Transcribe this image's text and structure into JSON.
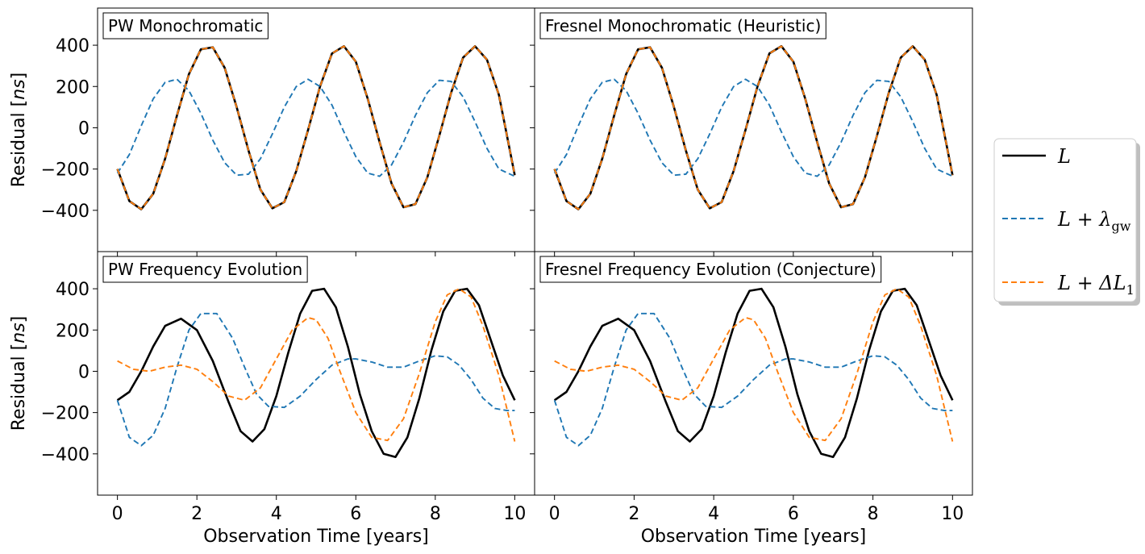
{
  "chart_data": {
    "type": "line",
    "layout": "2x2 grid, shared axes",
    "xlabel": "Observation Time [years]",
    "ylabel": "Residual [ns]",
    "ylabel_unit": "ns",
    "xlim": [
      -0.5,
      10.5
    ],
    "ylim": [
      -600,
      580
    ],
    "xticks": [
      0,
      2,
      4,
      6,
      8,
      10
    ],
    "yticks": [
      -400,
      -200,
      0,
      200,
      400
    ],
    "grid": false,
    "legend": {
      "placement": "outside-right",
      "entries": [
        {
          "key": "L",
          "text": "L",
          "color": "#000000",
          "style": "solid"
        },
        {
          "key": "Lgw",
          "text": "L + λ",
          "sub": "gw",
          "color": "#1f77b4",
          "style": "dashed"
        },
        {
          "key": "LdL",
          "text": "L + ΔL",
          "sub": "1",
          "color": "#ff7f0e",
          "style": "dashed"
        }
      ]
    },
    "panels": [
      {
        "title": "PW Monochromatic",
        "series": [
          {
            "key": "L",
            "x": [
              0,
              0.3,
              0.6,
              0.9,
              1.2,
              1.5,
              1.8,
              2.1,
              2.4,
              2.7,
              3.0,
              3.3,
              3.6,
              3.9,
              4.2,
              4.5,
              4.8,
              5.1,
              5.4,
              5.7,
              6.0,
              6.3,
              6.6,
              6.9,
              7.2,
              7.5,
              7.8,
              8.1,
              8.4,
              8.7,
              9.0,
              9.3,
              9.6,
              10.0
            ],
            "y": [
              -200,
              -355,
              -395,
              -320,
              -150,
              60,
              260,
              380,
              390,
              290,
              100,
              -110,
              -300,
              -390,
              -360,
              -210,
              -10,
              200,
              360,
              395,
              320,
              140,
              -70,
              -270,
              -385,
              -370,
              -240,
              -40,
              170,
              340,
              395,
              330,
              160,
              -230
            ]
          },
          {
            "key": "LdL",
            "x": [
              0,
              0.3,
              0.6,
              0.9,
              1.2,
              1.5,
              1.8,
              2.1,
              2.4,
              2.7,
              3.0,
              3.3,
              3.6,
              3.9,
              4.2,
              4.5,
              4.8,
              5.1,
              5.4,
              5.7,
              6.0,
              6.3,
              6.6,
              6.9,
              7.2,
              7.5,
              7.8,
              8.1,
              8.4,
              8.7,
              9.0,
              9.3,
              9.6,
              10.0
            ],
            "y": [
              -200,
              -355,
              -395,
              -320,
              -150,
              60,
              260,
              380,
              390,
              290,
              100,
              -110,
              -300,
              -390,
              -360,
              -210,
              -10,
              200,
              360,
              395,
              320,
              140,
              -70,
              -270,
              -385,
              -370,
              -240,
              -40,
              170,
              340,
              395,
              330,
              160,
              -230
            ]
          },
          {
            "key": "Lgw",
            "x": [
              0,
              0.3,
              0.6,
              0.9,
              1.2,
              1.5,
              1.8,
              2.1,
              2.4,
              2.7,
              3.0,
              3.3,
              3.6,
              3.9,
              4.2,
              4.5,
              4.8,
              5.1,
              5.4,
              5.7,
              6.0,
              6.3,
              6.6,
              6.9,
              7.2,
              7.5,
              7.8,
              8.1,
              8.4,
              8.7,
              9.0,
              9.3,
              9.6,
              10.0
            ],
            "y": [
              -220,
              -130,
              10,
              140,
              220,
              235,
              180,
              70,
              -60,
              -170,
              -230,
              -225,
              -150,
              -30,
              100,
              200,
              235,
              200,
              110,
              -20,
              -140,
              -220,
              -235,
              -180,
              -70,
              60,
              170,
              230,
              225,
              150,
              30,
              -100,
              -200,
              -235
            ]
          }
        ]
      },
      {
        "title": "Fresnel Monochromatic (Heuristic)",
        "series": [
          {
            "key": "L",
            "x": [
              0,
              0.3,
              0.6,
              0.9,
              1.2,
              1.5,
              1.8,
              2.1,
              2.4,
              2.7,
              3.0,
              3.3,
              3.6,
              3.9,
              4.2,
              4.5,
              4.8,
              5.1,
              5.4,
              5.7,
              6.0,
              6.3,
              6.6,
              6.9,
              7.2,
              7.5,
              7.8,
              8.1,
              8.4,
              8.7,
              9.0,
              9.3,
              9.6,
              10.0
            ],
            "y": [
              -200,
              -355,
              -395,
              -320,
              -150,
              60,
              260,
              380,
              390,
              290,
              100,
              -110,
              -300,
              -390,
              -360,
              -210,
              -10,
              200,
              360,
              395,
              320,
              140,
              -70,
              -270,
              -385,
              -370,
              -240,
              -40,
              170,
              340,
              395,
              330,
              160,
              -230
            ]
          },
          {
            "key": "LdL",
            "x": [
              0,
              0.3,
              0.6,
              0.9,
              1.2,
              1.5,
              1.8,
              2.1,
              2.4,
              2.7,
              3.0,
              3.3,
              3.6,
              3.9,
              4.2,
              4.5,
              4.8,
              5.1,
              5.4,
              5.7,
              6.0,
              6.3,
              6.6,
              6.9,
              7.2,
              7.5,
              7.8,
              8.1,
              8.4,
              8.7,
              9.0,
              9.3,
              9.6,
              10.0
            ],
            "y": [
              -200,
              -355,
              -395,
              -320,
              -150,
              60,
              260,
              380,
              390,
              290,
              100,
              -110,
              -300,
              -390,
              -360,
              -210,
              -10,
              200,
              360,
              395,
              320,
              140,
              -70,
              -270,
              -385,
              -370,
              -240,
              -40,
              170,
              340,
              395,
              330,
              160,
              -230
            ]
          },
          {
            "key": "Lgw",
            "x": [
              0,
              0.3,
              0.6,
              0.9,
              1.2,
              1.5,
              1.8,
              2.1,
              2.4,
              2.7,
              3.0,
              3.3,
              3.6,
              3.9,
              4.2,
              4.5,
              4.8,
              5.1,
              5.4,
              5.7,
              6.0,
              6.3,
              6.6,
              6.9,
              7.2,
              7.5,
              7.8,
              8.1,
              8.4,
              8.7,
              9.0,
              9.3,
              9.6,
              10.0
            ],
            "y": [
              -220,
              -130,
              10,
              140,
              220,
              235,
              180,
              70,
              -60,
              -170,
              -230,
              -225,
              -150,
              -30,
              100,
              200,
              235,
              200,
              110,
              -20,
              -140,
              -220,
              -235,
              -180,
              -70,
              60,
              170,
              230,
              225,
              150,
              30,
              -100,
              -200,
              -235
            ]
          }
        ]
      },
      {
        "title": "PW Frequency Evolution",
        "series": [
          {
            "key": "L",
            "x": [
              0,
              0.3,
              0.6,
              0.9,
              1.2,
              1.6,
              2.0,
              2.4,
              2.8,
              3.1,
              3.4,
              3.7,
              4.0,
              4.3,
              4.6,
              4.9,
              5.2,
              5.5,
              5.8,
              6.1,
              6.4,
              6.7,
              7.0,
              7.3,
              7.6,
              7.9,
              8.2,
              8.5,
              8.8,
              9.1,
              9.4,
              9.7,
              10.0
            ],
            "y": [
              -140,
              -100,
              0,
              120,
              220,
              255,
              200,
              50,
              -150,
              -290,
              -340,
              -280,
              -120,
              90,
              280,
              390,
              400,
              310,
              120,
              -110,
              -290,
              -400,
              -415,
              -320,
              -130,
              100,
              290,
              390,
              400,
              320,
              150,
              -20,
              -140
            ]
          },
          {
            "key": "Lgw",
            "x": [
              0,
              0.3,
              0.6,
              0.9,
              1.2,
              1.5,
              1.8,
              2.1,
              2.5,
              2.9,
              3.2,
              3.5,
              3.8,
              4.2,
              4.6,
              5.0,
              5.4,
              5.8,
              6.0,
              6.4,
              6.8,
              7.2,
              7.6,
              8.0,
              8.3,
              8.6,
              8.9,
              9.2,
              9.5,
              9.8,
              10.0
            ],
            "y": [
              -140,
              -320,
              -360,
              -310,
              -180,
              20,
              200,
              280,
              280,
              160,
              20,
              -110,
              -170,
              -175,
              -120,
              -40,
              30,
              60,
              60,
              45,
              20,
              20,
              50,
              75,
              70,
              30,
              -40,
              -130,
              -180,
              -190,
              -190
            ]
          },
          {
            "key": "LdL",
            "x": [
              0,
              0.4,
              0.8,
              1.2,
              1.6,
              2.0,
              2.4,
              2.8,
              3.2,
              3.6,
              4.0,
              4.4,
              4.8,
              5.0,
              5.3,
              5.6,
              6.0,
              6.4,
              6.8,
              7.2,
              7.6,
              8.0,
              8.3,
              8.6,
              8.9,
              9.2,
              9.6,
              10.0
            ],
            "y": [
              50,
              10,
              0,
              20,
              30,
              10,
              -50,
              -120,
              -140,
              -80,
              60,
              200,
              260,
              250,
              160,
              0,
              -200,
              -320,
              -335,
              -230,
              -10,
              240,
              370,
              400,
              360,
              220,
              -20,
              -340
            ]
          }
        ]
      },
      {
        "title": "Fresnel Frequency Evolution (Conjecture)",
        "series": [
          {
            "key": "L",
            "x": [
              0,
              0.3,
              0.6,
              0.9,
              1.2,
              1.6,
              2.0,
              2.4,
              2.8,
              3.1,
              3.4,
              3.7,
              4.0,
              4.3,
              4.6,
              4.9,
              5.2,
              5.5,
              5.8,
              6.1,
              6.4,
              6.7,
              7.0,
              7.3,
              7.6,
              7.9,
              8.2,
              8.5,
              8.8,
              9.1,
              9.4,
              9.7,
              10.0
            ],
            "y": [
              -140,
              -100,
              0,
              120,
              220,
              255,
              200,
              50,
              -150,
              -290,
              -340,
              -280,
              -120,
              90,
              280,
              390,
              400,
              310,
              120,
              -110,
              -290,
              -400,
              -415,
              -320,
              -130,
              100,
              290,
              390,
              400,
              320,
              150,
              -20,
              -140
            ]
          },
          {
            "key": "Lgw",
            "x": [
              0,
              0.3,
              0.6,
              0.9,
              1.2,
              1.5,
              1.8,
              2.1,
              2.5,
              2.9,
              3.2,
              3.5,
              3.8,
              4.2,
              4.6,
              5.0,
              5.4,
              5.8,
              6.0,
              6.4,
              6.8,
              7.2,
              7.6,
              8.0,
              8.3,
              8.6,
              8.9,
              9.2,
              9.5,
              9.8,
              10.0
            ],
            "y": [
              -140,
              -320,
              -360,
              -310,
              -180,
              20,
              200,
              280,
              280,
              160,
              20,
              -110,
              -170,
              -175,
              -120,
              -40,
              30,
              60,
              60,
              45,
              20,
              20,
              50,
              75,
              70,
              30,
              -40,
              -130,
              -180,
              -190,
              -190
            ]
          },
          {
            "key": "LdL",
            "x": [
              0,
              0.4,
              0.8,
              1.2,
              1.6,
              2.0,
              2.4,
              2.8,
              3.2,
              3.6,
              4.0,
              4.4,
              4.8,
              5.0,
              5.3,
              5.6,
              6.0,
              6.4,
              6.8,
              7.2,
              7.6,
              8.0,
              8.3,
              8.6,
              8.9,
              9.2,
              9.6,
              10.0
            ],
            "y": [
              50,
              10,
              0,
              20,
              30,
              10,
              -50,
              -120,
              -140,
              -80,
              60,
              200,
              260,
              250,
              160,
              0,
              -200,
              -320,
              -335,
              -230,
              -10,
              240,
              370,
              400,
              360,
              220,
              -20,
              -340
            ]
          }
        ]
      }
    ]
  }
}
